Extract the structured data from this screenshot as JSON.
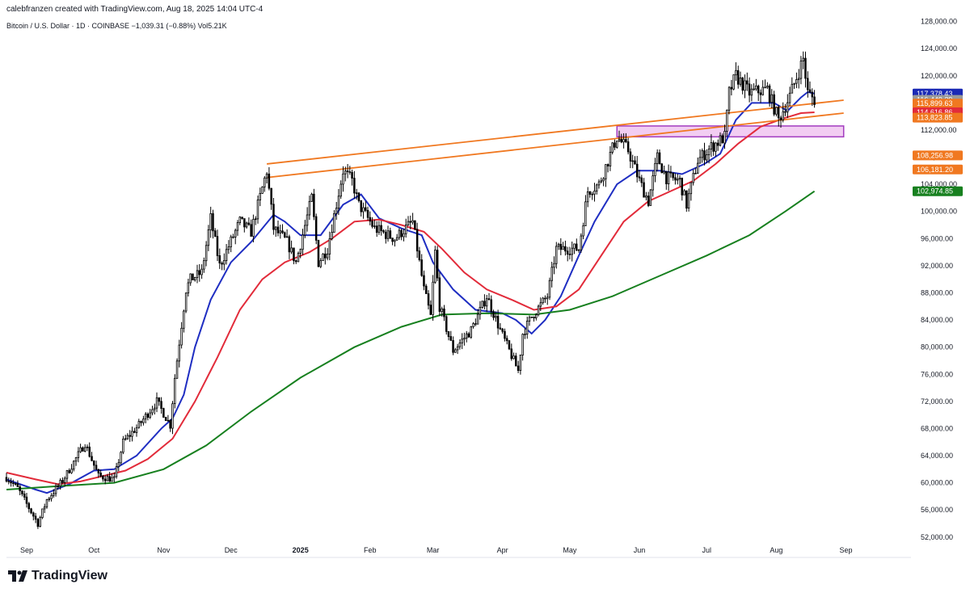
{
  "header": {
    "credit": "calebfranzen created with TradingView.com, Aug 18, 2025 14:04 UTC-4"
  },
  "symbol_line": "Bitcoin / U.S. Dollar · 1D · COINBASE  −1,039.31 (−0.88%)  Vol5.21K",
  "footer": {
    "brand": "TradingView"
  },
  "colors": {
    "candle": "#000000",
    "blue_ma": "#1f2ec2",
    "red_ma": "#e22b3a",
    "green_ma": "#17801f",
    "orange_line": "#f07820",
    "zone_fill": "#f2cdf2",
    "zone_stroke": "#a23bbf",
    "grey_tag": "#9a9a9a"
  },
  "chart_data": {
    "type": "candlestick",
    "y_axis": {
      "ticks": [
        "128,000.00",
        "124,000.00",
        "120,000.00",
        "116,000.00",
        "112,000.00",
        "108,000.00",
        "104,000.00",
        "100,000.00",
        "96,000.00",
        "92,000.00",
        "88,000.00",
        "84,000.00",
        "80,000.00",
        "76,000.00",
        "72,000.00",
        "68,000.00",
        "64,000.00",
        "60,000.00",
        "56,000.00",
        "52,000.00"
      ],
      "range": [
        49000,
        129500
      ]
    },
    "x_axis": {
      "ticks": [
        {
          "label": "Sep",
          "date": "2024-09-01",
          "bold": false
        },
        {
          "label": "Oct",
          "date": "2024-10-01",
          "bold": false
        },
        {
          "label": "Nov",
          "date": "2024-11-01",
          "bold": false
        },
        {
          "label": "Dec",
          "date": "2024-12-01",
          "bold": false
        },
        {
          "label": "2025",
          "date": "2025-01-01",
          "bold": true
        },
        {
          "label": "Feb",
          "date": "2025-02-01",
          "bold": false
        },
        {
          "label": "Mar",
          "date": "2025-03-01",
          "bold": false
        },
        {
          "label": "Apr",
          "date": "2025-04-01",
          "bold": false
        },
        {
          "label": "May",
          "date": "2025-05-01",
          "bold": false
        },
        {
          "label": "Jun",
          "date": "2025-06-01",
          "bold": false
        },
        {
          "label": "Jul",
          "date": "2025-07-01",
          "bold": false
        },
        {
          "label": "Aug",
          "date": "2025-08-01",
          "bold": false
        },
        {
          "label": "Sep",
          "date": "2025-09-01",
          "bold": false
        }
      ],
      "range": [
        "2024-08-23",
        "2025-09-30"
      ]
    },
    "price_anchors": [
      [
        "2024-08-23",
        60800
      ],
      [
        "2024-08-28",
        59200
      ],
      [
        "2024-09-06",
        54000
      ],
      [
        "2024-09-10",
        57500
      ],
      [
        "2024-09-17",
        60300
      ],
      [
        "2024-09-27",
        65800
      ],
      [
        "2024-10-03",
        61000
      ],
      [
        "2024-10-10",
        60500
      ],
      [
        "2024-10-14",
        66000
      ],
      [
        "2024-10-21",
        68500
      ],
      [
        "2024-10-29",
        72000
      ],
      [
        "2024-11-04",
        68500
      ],
      [
        "2024-11-06",
        75500
      ],
      [
        "2024-11-11",
        88500
      ],
      [
        "2024-11-13",
        90000
      ],
      [
        "2024-11-18",
        91000
      ],
      [
        "2024-11-22",
        99000
      ],
      [
        "2024-11-26",
        92000
      ],
      [
        "2024-12-05",
        98500
      ],
      [
        "2024-12-10",
        97000
      ],
      [
        "2024-12-17",
        106000
      ],
      [
        "2024-12-20",
        97500
      ],
      [
        "2024-12-26",
        95500
      ],
      [
        "2024-12-30",
        92500
      ],
      [
        "2025-01-06",
        102000
      ],
      [
        "2025-01-09",
        92500
      ],
      [
        "2025-01-13",
        94500
      ],
      [
        "2025-01-20",
        106000
      ],
      [
        "2025-01-24",
        104500
      ],
      [
        "2025-01-27",
        101000
      ],
      [
        "2025-02-03",
        97500
      ],
      [
        "2025-02-12",
        96000
      ],
      [
        "2025-02-20",
        98500
      ],
      [
        "2025-02-25",
        88500
      ],
      [
        "2025-02-28",
        84500
      ],
      [
        "2025-03-02",
        94000
      ],
      [
        "2025-03-04",
        86000
      ],
      [
        "2025-03-10",
        79500
      ],
      [
        "2025-03-18",
        82500
      ],
      [
        "2025-03-25",
        87500
      ],
      [
        "2025-03-31",
        82500
      ],
      [
        "2025-04-06",
        78000
      ],
      [
        "2025-04-08",
        76500
      ],
      [
        "2025-04-10",
        82000
      ],
      [
        "2025-04-14",
        84500
      ],
      [
        "2025-04-21",
        87500
      ],
      [
        "2025-04-25",
        94500
      ],
      [
        "2025-05-05",
        94500
      ],
      [
        "2025-05-09",
        103000
      ],
      [
        "2025-05-14",
        104000
      ],
      [
        "2025-05-22",
        111000
      ],
      [
        "2025-05-27",
        109000
      ],
      [
        "2025-06-01",
        104500
      ],
      [
        "2025-06-05",
        101500
      ],
      [
        "2025-06-09",
        108000
      ],
      [
        "2025-06-13",
        105000
      ],
      [
        "2025-06-19",
        104500
      ],
      [
        "2025-06-22",
        101000
      ],
      [
        "2025-06-27",
        107500
      ],
      [
        "2025-07-03",
        109500
      ],
      [
        "2025-07-09",
        111000
      ],
      [
        "2025-07-11",
        117500
      ],
      [
        "2025-07-14",
        120000
      ],
      [
        "2025-07-20",
        117500
      ],
      [
        "2025-07-28",
        118000
      ],
      [
        "2025-08-02",
        113500
      ],
      [
        "2025-08-07",
        117000
      ],
      [
        "2025-08-13",
        122500
      ],
      [
        "2025-08-15",
        117500
      ],
      [
        "2025-08-18",
        116450
      ]
    ],
    "moving_averages": [
      {
        "color_key": "blue_ma",
        "points": [
          [
            "2024-08-23",
            60500
          ],
          [
            "2024-09-05",
            59000
          ],
          [
            "2024-09-10",
            58500
          ],
          [
            "2024-09-20",
            59800
          ],
          [
            "2024-10-01",
            61800
          ],
          [
            "2024-10-10",
            62000
          ],
          [
            "2024-10-20",
            64000
          ],
          [
            "2024-10-31",
            68000
          ],
          [
            "2024-11-05",
            69500
          ],
          [
            "2024-11-10",
            73000
          ],
          [
            "2024-11-15",
            80000
          ],
          [
            "2024-11-22",
            87000
          ],
          [
            "2024-12-01",
            92500
          ],
          [
            "2024-12-10",
            95500
          ],
          [
            "2024-12-20",
            99500
          ],
          [
            "2024-12-25",
            98500
          ],
          [
            "2025-01-01",
            96500
          ],
          [
            "2025-01-10",
            96500
          ],
          [
            "2025-01-20",
            101000
          ],
          [
            "2025-01-28",
            102500
          ],
          [
            "2025-02-05",
            99000
          ],
          [
            "2025-02-15",
            97500
          ],
          [
            "2025-02-24",
            96500
          ],
          [
            "2025-03-01",
            92500
          ],
          [
            "2025-03-10",
            88500
          ],
          [
            "2025-03-20",
            85500
          ],
          [
            "2025-04-01",
            85000
          ],
          [
            "2025-04-07",
            84000
          ],
          [
            "2025-04-14",
            82000
          ],
          [
            "2025-04-20",
            84000
          ],
          [
            "2025-04-27",
            87500
          ],
          [
            "2025-05-05",
            93500
          ],
          [
            "2025-05-12",
            98500
          ],
          [
            "2025-05-22",
            104000
          ],
          [
            "2025-05-31",
            106000
          ],
          [
            "2025-06-10",
            106000
          ],
          [
            "2025-06-20",
            105500
          ],
          [
            "2025-06-30",
            107000
          ],
          [
            "2025-07-07",
            108500
          ],
          [
            "2025-07-14",
            113500
          ],
          [
            "2025-07-21",
            116000
          ],
          [
            "2025-07-31",
            116000
          ],
          [
            "2025-08-06",
            114800
          ],
          [
            "2025-08-12",
            116800
          ],
          [
            "2025-08-15",
            117600
          ],
          [
            "2025-08-18",
            117378
          ]
        ]
      },
      {
        "color_key": "red_ma",
        "points": [
          [
            "2024-08-23",
            61500
          ],
          [
            "2024-09-05",
            60500
          ],
          [
            "2024-09-15",
            59800
          ],
          [
            "2024-09-25",
            60200
          ],
          [
            "2024-10-05",
            61000
          ],
          [
            "2024-10-15",
            61800
          ],
          [
            "2024-10-25",
            63500
          ],
          [
            "2024-11-05",
            66500
          ],
          [
            "2024-11-15",
            72000
          ],
          [
            "2024-11-25",
            78500
          ],
          [
            "2024-12-05",
            85500
          ],
          [
            "2024-12-15",
            90000
          ],
          [
            "2024-12-25",
            92500
          ],
          [
            "2025-01-05",
            94000
          ],
          [
            "2025-01-15",
            96000
          ],
          [
            "2025-01-25",
            98500
          ],
          [
            "2025-02-05",
            98800
          ],
          [
            "2025-02-15",
            98000
          ],
          [
            "2025-02-25",
            97000
          ],
          [
            "2025-03-05",
            94500
          ],
          [
            "2025-03-15",
            91000
          ],
          [
            "2025-03-25",
            88500
          ],
          [
            "2025-04-05",
            87000
          ],
          [
            "2025-04-15",
            85500
          ],
          [
            "2025-04-25",
            86000
          ],
          [
            "2025-05-05",
            88500
          ],
          [
            "2025-05-15",
            93500
          ],
          [
            "2025-05-25",
            98500
          ],
          [
            "2025-06-05",
            101500
          ],
          [
            "2025-06-15",
            103000
          ],
          [
            "2025-06-25",
            104500
          ],
          [
            "2025-07-05",
            107000
          ],
          [
            "2025-07-15",
            110000
          ],
          [
            "2025-07-25",
            112500
          ],
          [
            "2025-08-05",
            113800
          ],
          [
            "2025-08-12",
            114500
          ],
          [
            "2025-08-18",
            114617
          ]
        ]
      },
      {
        "color_key": "green_ma",
        "points": [
          [
            "2024-08-23",
            59000
          ],
          [
            "2024-09-15",
            59500
          ],
          [
            "2024-10-10",
            60000
          ],
          [
            "2024-11-01",
            62000
          ],
          [
            "2024-11-20",
            65500
          ],
          [
            "2024-12-10",
            70500
          ],
          [
            "2025-01-01",
            75500
          ],
          [
            "2025-01-25",
            80000
          ],
          [
            "2025-02-15",
            83000
          ],
          [
            "2025-03-05",
            84800
          ],
          [
            "2025-03-25",
            85000
          ],
          [
            "2025-04-15",
            84800
          ],
          [
            "2025-05-01",
            85500
          ],
          [
            "2025-05-20",
            87500
          ],
          [
            "2025-06-10",
            90500
          ],
          [
            "2025-07-01",
            93500
          ],
          [
            "2025-07-20",
            96500
          ],
          [
            "2025-08-05",
            100000
          ],
          [
            "2025-08-18",
            102975
          ]
        ]
      }
    ],
    "trendlines": [
      {
        "from": [
          "2024-12-17",
          107000
        ],
        "to": [
          "2025-08-31",
          116400
        ]
      },
      {
        "from": [
          "2024-12-17",
          105000
        ],
        "to": [
          "2025-08-31",
          114500
        ]
      }
    ],
    "zone": {
      "from": "2025-05-22",
      "to": "2025-08-31",
      "y_top": 112600,
      "y_bottom": 111000
    },
    "price_tags": [
      {
        "value": 117378.43,
        "label": "117,378.43",
        "color": "#1a29b5"
      },
      {
        "value": 116449.29,
        "label": "116,449.29",
        "color": "#9a9a9a"
      },
      {
        "value": 115899.63,
        "label": "115,899.63",
        "color": "#f07820"
      },
      {
        "value": 114616.86,
        "label": "114,616.86",
        "color": "#e22b3a"
      },
      {
        "value": 113823.85,
        "label": "113,823.85",
        "color": "#f07820"
      },
      {
        "value": 108256.98,
        "label": "108,256.98",
        "color": "#f07820"
      },
      {
        "value": 106181.2,
        "label": "106,181.20",
        "color": "#f07820"
      },
      {
        "value": 102974.85,
        "label": "102,974.85",
        "color": "#17801f"
      }
    ]
  }
}
